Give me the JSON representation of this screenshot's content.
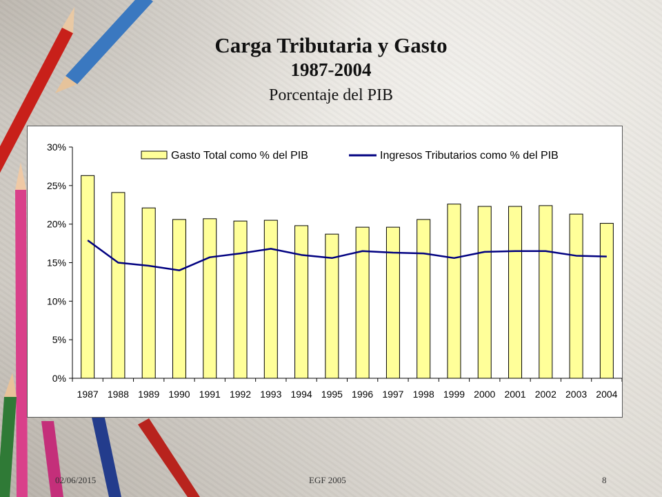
{
  "slide": {
    "title": "Carga Tributaria y Gasto",
    "years_title": "1987-2004",
    "subtitle": "Porcentaje del PIB",
    "footer_date": "02/06/2015",
    "footer_center": "EGF 2005",
    "page_number": "8"
  },
  "chart_data": {
    "type": "bar",
    "categories": [
      "1987",
      "1988",
      "1989",
      "1990",
      "1991",
      "1992",
      "1993",
      "1994",
      "1995",
      "1996",
      "1997",
      "1998",
      "1999",
      "2000",
      "2001",
      "2002",
      "2003",
      "2004"
    ],
    "series": [
      {
        "name": "Gasto Total como % del PIB",
        "type": "bar",
        "color": "#ffff99",
        "values": [
          26.3,
          24.1,
          22.1,
          20.6,
          20.7,
          20.4,
          20.5,
          19.8,
          18.7,
          19.6,
          19.6,
          20.6,
          22.6,
          22.3,
          22.3,
          22.4,
          21.3,
          20.1
        ]
      },
      {
        "name": "Ingresos Tributarios como % del PIB",
        "type": "line",
        "color": "#000080",
        "values": [
          17.9,
          15.0,
          14.6,
          14.0,
          15.7,
          16.2,
          16.8,
          16.0,
          15.6,
          16.5,
          16.3,
          16.2,
          15.6,
          16.4,
          16.5,
          16.5,
          15.9,
          15.8
        ]
      }
    ],
    "y_ticks": [
      "0%",
      "5%",
      "10%",
      "15%",
      "20%",
      "25%",
      "30%"
    ],
    "ylim": [
      0,
      30
    ],
    "legend_position": "top"
  }
}
